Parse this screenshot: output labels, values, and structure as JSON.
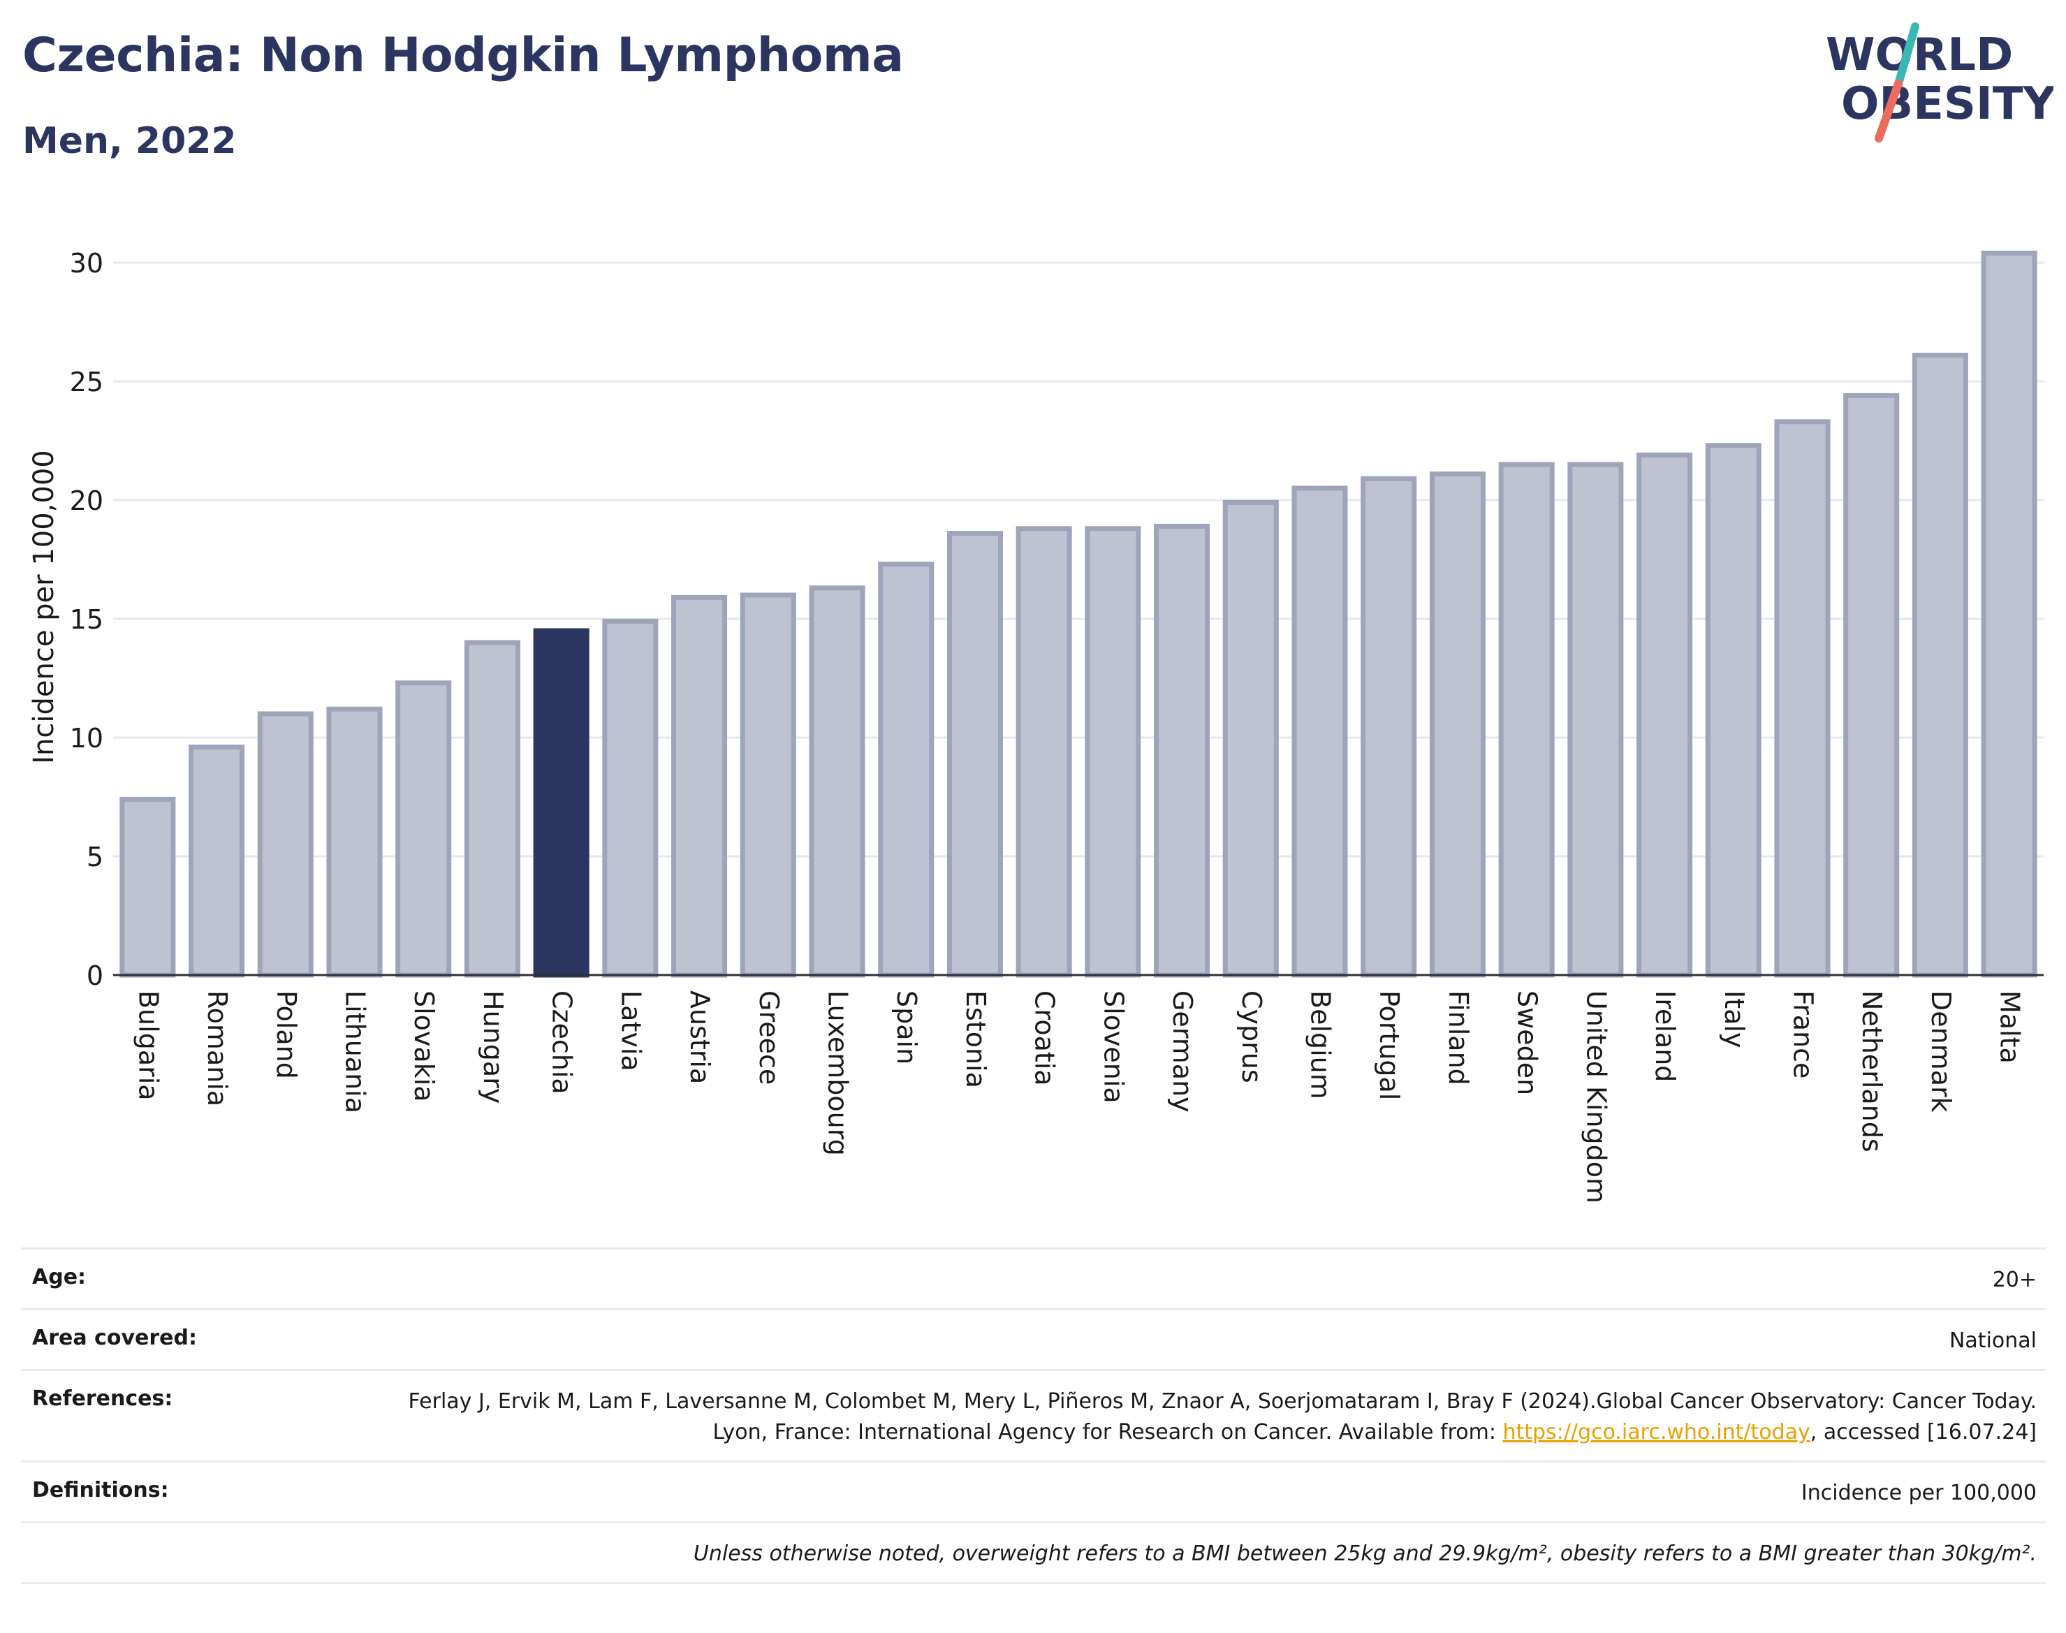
{
  "header": {
    "title": "Czechia: Non Hodgkin Lymphoma",
    "subtitle": "Men, 2022"
  },
  "logo": {
    "line1": "WORLD",
    "line2": "OBESITY"
  },
  "colors": {
    "highlight": "#2b3660",
    "bar": "#bfc3d1",
    "bar_edge": "#9ea4ba",
    "gridline": "#e6e8ef",
    "title": "#2c3560",
    "link": "#e8a200"
  },
  "chart_data": {
    "type": "bar",
    "ylabel": "Incidence per 100,000",
    "xlabel": "",
    "ylim": [
      0,
      31
    ],
    "yticks": [
      0,
      5,
      10,
      15,
      20,
      25,
      30
    ],
    "grid": true,
    "highlight": "Czechia",
    "categories": [
      "Bulgaria",
      "Romania",
      "Poland",
      "Lithuania",
      "Slovakia",
      "Hungary",
      "Czechia",
      "Latvia",
      "Austria",
      "Greece",
      "Luxembourg",
      "Spain",
      "Estonia",
      "Croatia",
      "Slovenia",
      "Germany",
      "Cyprus",
      "Belgium",
      "Portugal",
      "Finland",
      "Sweden",
      "United Kingdom",
      "Ireland",
      "Italy",
      "France",
      "Netherlands",
      "Denmark",
      "Malta"
    ],
    "values": [
      7.4,
      9.6,
      11.0,
      11.2,
      12.3,
      14.0,
      14.5,
      14.9,
      15.9,
      16.0,
      16.3,
      17.3,
      18.6,
      18.8,
      18.8,
      18.9,
      19.9,
      20.5,
      20.9,
      21.1,
      21.5,
      21.5,
      21.9,
      22.3,
      23.3,
      24.4,
      26.1,
      30.4
    ]
  },
  "meta": {
    "age_label": "Age:",
    "age_value": "20+",
    "area_label": "Area covered:",
    "area_value": "National",
    "references_label": "References:",
    "references_text_1": "Ferlay J, Ervik M, Lam F, Laversanne M, Colombet M, Mery L, Piñeros M, Znaor A, Soerjomataram I, Bray F (2024).Global Cancer Observatory: Cancer Today. Lyon, France: International Agency for Research on Cancer. Available from: ",
    "references_link": "https://gco.iarc.who.int/today",
    "references_text_2": ", accessed [16.07.24]",
    "definitions_label": "Definitions:",
    "definitions_value": "Incidence per 100,000",
    "note": "Unless otherwise noted, overweight refers to a BMI between 25kg and 29.9kg/m², obesity refers to a BMI greater than 30kg/m²."
  }
}
